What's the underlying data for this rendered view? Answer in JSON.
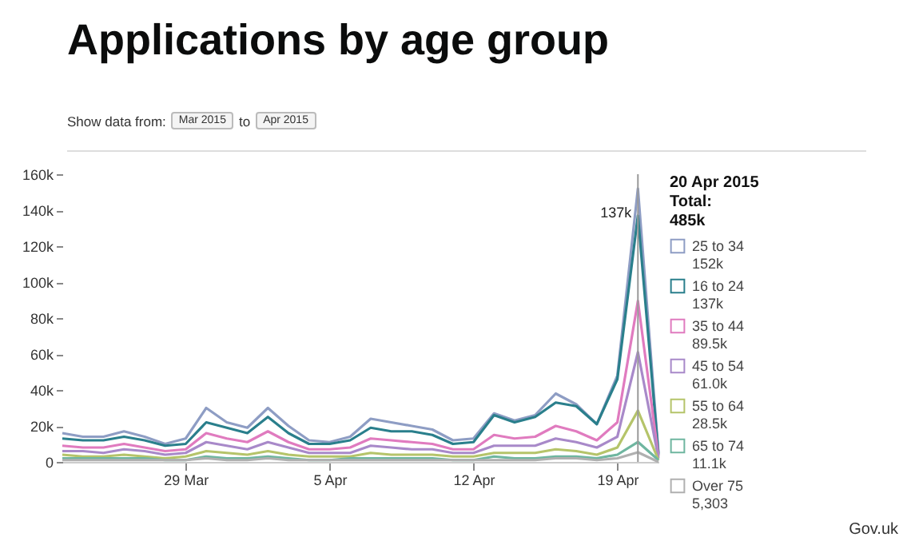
{
  "chart_data": {
    "type": "line",
    "title": "Applications by age group",
    "x": [
      "2015-03-23",
      "2015-03-24",
      "2015-03-25",
      "2015-03-26",
      "2015-03-27",
      "2015-03-28",
      "2015-03-29",
      "2015-03-30",
      "2015-03-31",
      "2015-04-01",
      "2015-04-02",
      "2015-04-03",
      "2015-04-04",
      "2015-04-05",
      "2015-04-06",
      "2015-04-07",
      "2015-04-08",
      "2015-04-09",
      "2015-04-10",
      "2015-04-11",
      "2015-04-12",
      "2015-04-13",
      "2015-04-14",
      "2015-04-15",
      "2015-04-16",
      "2015-04-17",
      "2015-04-18",
      "2015-04-19",
      "2015-04-20",
      "2015-04-21"
    ],
    "series": [
      {
        "name": "25 to 34",
        "color": "#8e9dc4",
        "values": [
          16000,
          14000,
          14000,
          17000,
          14000,
          10000,
          13000,
          30000,
          22000,
          19000,
          30000,
          20000,
          12000,
          11000,
          14000,
          24000,
          22000,
          20000,
          18000,
          12000,
          13000,
          27000,
          23000,
          26000,
          38000,
          32000,
          21000,
          48000,
          152000,
          5000
        ]
      },
      {
        "name": "16 to 24",
        "color": "#2a7f8c",
        "values": [
          13000,
          12000,
          12000,
          14000,
          12000,
          9000,
          10000,
          22000,
          19000,
          16000,
          25000,
          16000,
          10000,
          10000,
          12000,
          19000,
          17000,
          17000,
          15000,
          10000,
          11000,
          26000,
          22000,
          25000,
          33000,
          31000,
          21000,
          46000,
          137000,
          4000
        ]
      },
      {
        "name": "35 to 44",
        "color": "#e07bbf",
        "values": [
          9000,
          8000,
          8000,
          10000,
          8000,
          6000,
          7000,
          16000,
          13000,
          11000,
          17000,
          11000,
          7000,
          7000,
          8000,
          13000,
          12000,
          11000,
          10000,
          7000,
          7000,
          15000,
          13000,
          14000,
          20000,
          17000,
          12000,
          22000,
          89500,
          3000
        ]
      },
      {
        "name": "45 to 54",
        "color": "#a889c9",
        "values": [
          6000,
          6000,
          5000,
          7000,
          6000,
          4000,
          5000,
          11000,
          9000,
          7000,
          11000,
          8000,
          5000,
          5000,
          5000,
          9000,
          8000,
          7000,
          7000,
          5000,
          5000,
          9000,
          9000,
          9000,
          13000,
          11000,
          8000,
          14000,
          61000,
          2000
        ]
      },
      {
        "name": "55 to 64",
        "color": "#b5c46a",
        "values": [
          4000,
          3000,
          3000,
          4000,
          3000,
          2000,
          3000,
          6000,
          5000,
          4000,
          6000,
          4000,
          3000,
          3000,
          3000,
          5000,
          4000,
          4000,
          4000,
          3000,
          3000,
          5000,
          5000,
          5000,
          7000,
          6000,
          4000,
          8000,
          28500,
          1000
        ]
      },
      {
        "name": "65 to 74",
        "color": "#6fb6a0",
        "values": [
          2000,
          2000,
          2000,
          2000,
          2000,
          1000,
          1000,
          3000,
          2000,
          2000,
          3000,
          2000,
          1000,
          1000,
          2000,
          2000,
          2000,
          2000,
          2000,
          1000,
          1000,
          3000,
          2000,
          2000,
          3000,
          3000,
          2000,
          4000,
          11100,
          1000
        ]
      },
      {
        "name": "Over 75",
        "color": "#b0b0b0",
        "values": [
          1000,
          1000,
          1000,
          1000,
          1000,
          1000,
          1000,
          2000,
          1000,
          1000,
          2000,
          1000,
          1000,
          1000,
          1000,
          1000,
          1000,
          1000,
          1000,
          1000,
          1000,
          1000,
          1000,
          1000,
          2000,
          2000,
          1000,
          2000,
          5303,
          0
        ]
      }
    ],
    "xlim": [
      "2015-03-23",
      "2015-04-21"
    ],
    "xticks": [
      {
        "value": "2015-03-29",
        "label": "29 Mar"
      },
      {
        "value": "2015-04-05",
        "label": "5 Apr"
      },
      {
        "value": "2015-04-12",
        "label": "12 Apr"
      },
      {
        "value": "2015-04-19",
        "label": "19 Apr"
      }
    ],
    "ylim": [
      0,
      160000
    ],
    "yticks": [
      0,
      {
        "value": 20000,
        "label": "20k"
      },
      {
        "value": 40000,
        "label": "40k"
      },
      {
        "value": 60000,
        "label": "60k"
      },
      {
        "value": 80000,
        "label": "80k"
      },
      {
        "value": 100000,
        "label": "100k"
      },
      {
        "value": 120000,
        "label": "120k"
      },
      {
        "value": 140000,
        "label": "140k"
      },
      {
        "value": 160000,
        "label": "160k"
      }
    ],
    "ref_lines": [
      {
        "axis": "x",
        "value": "2015-04-20",
        "color": "#999999"
      }
    ],
    "annotations": [
      "Show data from:",
      "Mar 2015",
      "to",
      "Apr 2015",
      {
        "text": "137k",
        "x": "2015-04-20",
        "y": 137000
      },
      "20 Apr 2015",
      "Total:",
      "485k",
      "152k",
      "137k",
      "89.5k",
      "61.0k",
      "28.5k",
      "11.1k",
      "5,303",
      "Gov.uk"
    ],
    "legend": "right",
    "grid": false,
    "marker": "none",
    "line_style": "solid"
  }
}
